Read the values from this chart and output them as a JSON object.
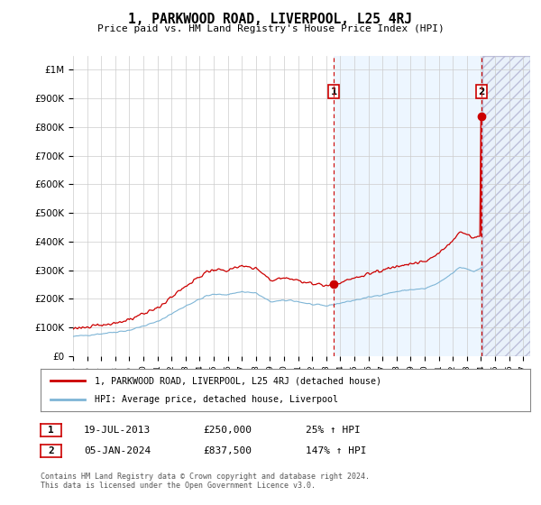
{
  "title": "1, PARKWOOD ROAD, LIVERPOOL, L25 4RJ",
  "subtitle": "Price paid vs. HM Land Registry's House Price Index (HPI)",
  "xlim_start": 1995.0,
  "xlim_end": 2027.5,
  "ylim": [
    0,
    1050000
  ],
  "yticks": [
    0,
    100000,
    200000,
    300000,
    400000,
    500000,
    600000,
    700000,
    800000,
    900000,
    1000000
  ],
  "ytick_labels": [
    "£0",
    "£100K",
    "£200K",
    "£300K",
    "£400K",
    "£500K",
    "£600K",
    "£700K",
    "£800K",
    "£900K",
    "£1M"
  ],
  "xticks": [
    1995,
    1996,
    1997,
    1998,
    1999,
    2000,
    2001,
    2002,
    2003,
    2004,
    2005,
    2006,
    2007,
    2008,
    2009,
    2010,
    2011,
    2012,
    2013,
    2014,
    2015,
    2016,
    2017,
    2018,
    2019,
    2020,
    2021,
    2022,
    2023,
    2024,
    2025,
    2026,
    2027
  ],
  "sale1_x": 2013.54,
  "sale1_y": 250000,
  "sale2_x": 2024.04,
  "sale2_y": 837500,
  "legend_line1": "1, PARKWOOD ROAD, LIVERPOOL, L25 4RJ (detached house)",
  "legend_line2": "HPI: Average price, detached house, Liverpool",
  "annotation1_date": "19-JUL-2013",
  "annotation1_price": "£250,000",
  "annotation1_hpi": "25% ↑ HPI",
  "annotation2_date": "05-JAN-2024",
  "annotation2_price": "£837,500",
  "annotation2_hpi": "147% ↑ HPI",
  "footer": "Contains HM Land Registry data © Crown copyright and database right 2024.\nThis data is licensed under the Open Government Licence v3.0.",
  "hatch_start": 2013.54,
  "red_color": "#cc0000",
  "blue_color": "#7eb5d6",
  "blue_shade": "#ddeeff",
  "grid_color": "#cccccc"
}
